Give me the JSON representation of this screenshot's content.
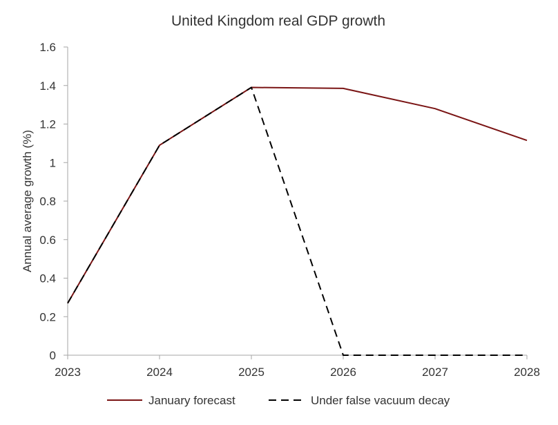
{
  "chart_data": {
    "type": "line",
    "title": "United Kingdom real GDP growth",
    "xlabel": "",
    "ylabel": "Annual average growth (%)",
    "x": [
      "2023",
      "2024",
      "2025",
      "2026",
      "2027",
      "2028"
    ],
    "ylim": [
      0,
      1.6
    ],
    "yticks": [
      0,
      0.2,
      0.4,
      0.6,
      0.8,
      1,
      1.2,
      1.4,
      1.6
    ],
    "ytick_labels": [
      "0",
      "0.2",
      "0.4",
      "0.6",
      "0.8",
      "1",
      "1.2",
      "1.4",
      "1.6"
    ],
    "grid": false,
    "legend_position": "bottom",
    "series": [
      {
        "name": "January forecast",
        "values": [
          0.27,
          1.09,
          1.39,
          1.385,
          1.28,
          1.115
        ],
        "color": "#7a1414",
        "style": "solid"
      },
      {
        "name": "Under false vacuum decay",
        "values": [
          0.27,
          1.09,
          1.39,
          0,
          0,
          0
        ],
        "color": "#000000",
        "style": "dashed"
      }
    ]
  }
}
